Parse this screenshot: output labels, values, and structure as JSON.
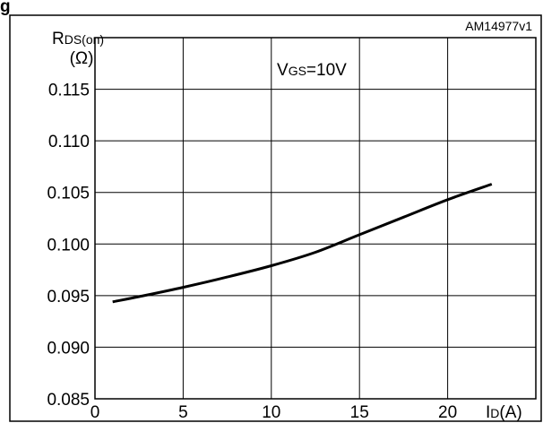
{
  "page": {
    "header_fragment": "g"
  },
  "chart_data": {
    "type": "line",
    "id_label": "AM14977v1",
    "annotation": {
      "prefix": "V",
      "subscript": "GS",
      "suffix": "=10V"
    },
    "ylabel": {
      "main": "R",
      "subscript": "DS(on)",
      "unit": "(Ω)"
    },
    "xlabel": {
      "main": "I",
      "subscript": "D",
      "unit": "(A)"
    },
    "xlim": [
      0,
      25
    ],
    "ylim": [
      0.085,
      0.12
    ],
    "xticks": [
      0,
      5,
      10,
      15,
      20
    ],
    "xtick_labels": [
      "0",
      "5",
      "10",
      "15",
      "20"
    ],
    "yticks": [
      0.085,
      0.09,
      0.095,
      0.1,
      0.105,
      0.11,
      0.115
    ],
    "ytick_labels": [
      "0.085",
      "0.090",
      "0.095",
      "0.100",
      "0.105",
      "0.110",
      "0.115"
    ],
    "grid": true,
    "series": [
      {
        "color": "#000000",
        "x": [
          1.0,
          2.5,
          5.0,
          7.5,
          10.0,
          12.5,
          15.0,
          17.5,
          20.0,
          22.5
        ],
        "y": [
          0.0944,
          0.0949,
          0.0958,
          0.0968,
          0.0979,
          0.0992,
          0.1009,
          0.1026,
          0.1043,
          0.1058
        ]
      }
    ]
  }
}
